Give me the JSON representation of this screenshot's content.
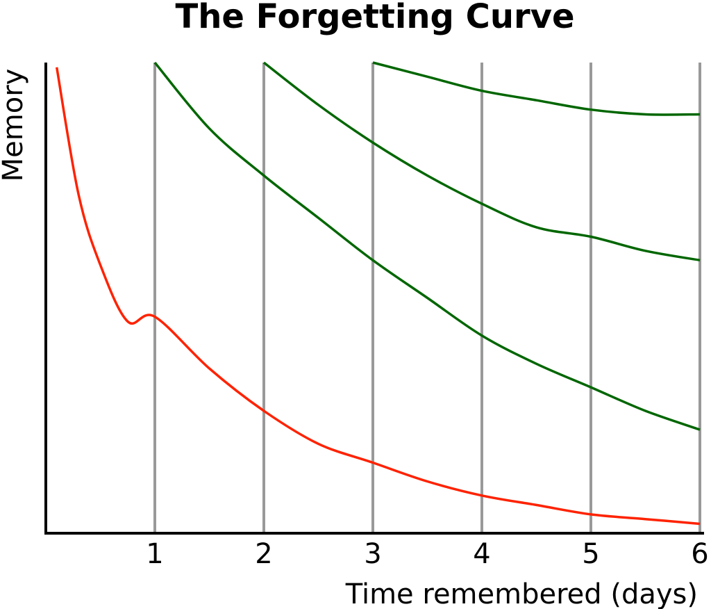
{
  "chart_data": {
    "type": "line",
    "title": "The Forgetting Curve",
    "xlabel": "Time remembered (days)",
    "ylabel": "Memory",
    "xlim": [
      0,
      6
    ],
    "ylim": [
      0,
      100
    ],
    "x_ticks": [
      "1",
      "2",
      "3",
      "4",
      "5",
      "6"
    ],
    "grid": "vertical lines at each day",
    "series": [
      {
        "x": [
          0.1,
          0.3,
          0.5,
          0.75,
          1,
          1.5,
          2,
          2.5,
          3,
          3.5,
          4,
          4.5,
          5,
          5.5,
          6
        ],
        "y": [
          99,
          72,
          57,
          45,
          46,
          35,
          26,
          19,
          15,
          11,
          8,
          6,
          4,
          3,
          2
        ],
        "color": "#ff2200"
      },
      {
        "x": [
          1,
          1.5,
          2,
          2.5,
          3,
          3.5,
          4,
          4.5,
          5,
          5.5,
          6
        ],
        "y": [
          100,
          86,
          76,
          67,
          58,
          50,
          42,
          36,
          31,
          26,
          22
        ],
        "color": "#006600"
      },
      {
        "x": [
          2,
          2.5,
          3,
          3.5,
          4,
          4.5,
          5,
          5.5,
          6
        ],
        "y": [
          100,
          91,
          83,
          76,
          70,
          65,
          63,
          60,
          58
        ],
        "color": "#006600"
      },
      {
        "x": [
          3,
          3.5,
          4,
          4.5,
          5,
          5.5,
          6
        ],
        "y": [
          100,
          97,
          94,
          92,
          90,
          89,
          89
        ],
        "color": "#006600"
      }
    ]
  }
}
